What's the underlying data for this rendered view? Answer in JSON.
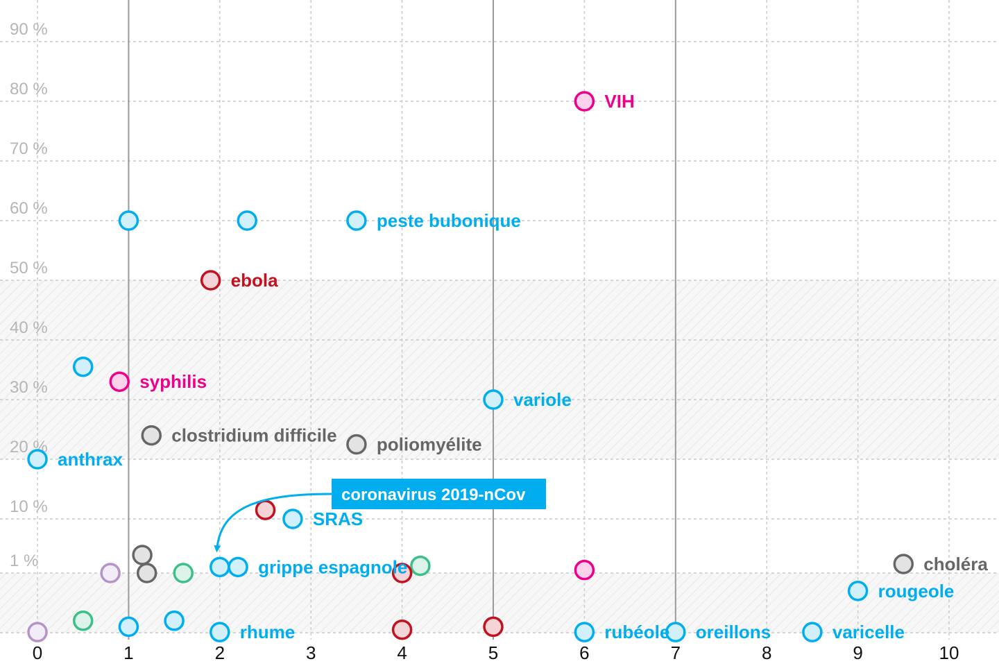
{
  "chart_data": {
    "type": "scatter",
    "xlabel": "",
    "ylabel": "",
    "xlim": [
      0,
      10
    ],
    "ylim": [
      "0",
      "90 %"
    ],
    "x_ticks": [
      "0",
      "1",
      "2",
      "3",
      "4",
      "5",
      "6",
      "7",
      "8",
      "9",
      "10"
    ],
    "y_ticks": [
      {
        "value": 90,
        "label": "90 %"
      },
      {
        "value": 80,
        "label": "80 %"
      },
      {
        "value": 70,
        "label": "70 %"
      },
      {
        "value": 60,
        "label": "60 %"
      },
      {
        "value": 50,
        "label": "50 %"
      },
      {
        "value": 40,
        "label": "40 %"
      },
      {
        "value": 30,
        "label": "30 %"
      },
      {
        "value": 20,
        "label": "20 %"
      },
      {
        "value": 10,
        "label": "10 %"
      },
      {
        "value": 1,
        "label": "1 %"
      }
    ],
    "y_scale_note": "piecewise: linear 10–90 %, compressed 0–10 %",
    "grid": true,
    "colors": {
      "blue": "#00aeef",
      "pink": "#ec008c",
      "red": "#c1121f",
      "gray": "#666666",
      "green": "#3dbf8a",
      "purple": "#b394c9"
    },
    "points": [
      {
        "x": 6.0,
        "y": 80,
        "color": "pink",
        "label": "VIH"
      },
      {
        "x": 1.0,
        "y": 60,
        "color": "blue",
        "label": ""
      },
      {
        "x": 2.3,
        "y": 60,
        "color": "blue",
        "label": ""
      },
      {
        "x": 3.5,
        "y": 60,
        "color": "blue",
        "label": "peste bubonique"
      },
      {
        "x": 1.9,
        "y": 50,
        "color": "red",
        "label": "ebola"
      },
      {
        "x": 0.5,
        "y": 35.5,
        "color": "blue",
        "label": ""
      },
      {
        "x": 0.9,
        "y": 33,
        "color": "pink",
        "label": "syphilis"
      },
      {
        "x": 5.0,
        "y": 30,
        "color": "blue",
        "label": "variole"
      },
      {
        "x": 1.25,
        "y": 24,
        "color": "gray",
        "label": "clostridium difficile"
      },
      {
        "x": 3.5,
        "y": 22.5,
        "color": "gray",
        "label": "poliomyélite"
      },
      {
        "x": 0.0,
        "y": 20,
        "color": "blue",
        "label": "anthrax"
      },
      {
        "x": 2.5,
        "y": 11.5,
        "color": "red",
        "label": ""
      },
      {
        "x": 2.8,
        "y": 10,
        "color": "blue",
        "label": "SRAS"
      },
      {
        "x": 1.15,
        "y": 4,
        "color": "gray",
        "label": ""
      },
      {
        "x": 2.2,
        "y": 2,
        "color": "blue",
        "label": "grippe espagnole"
      },
      {
        "x": 4.2,
        "y": 2.2,
        "color": "green",
        "label": ""
      },
      {
        "x": 9.5,
        "y": 2.5,
        "color": "gray",
        "label": "choléra"
      },
      {
        "x": 6.0,
        "y": 1.5,
        "color": "pink",
        "label": ""
      },
      {
        "x": 0.8,
        "y": 1,
        "color": "purple",
        "label": ""
      },
      {
        "x": 1.2,
        "y": 1,
        "color": "gray",
        "label": ""
      },
      {
        "x": 1.6,
        "y": 1,
        "color": "green",
        "label": ""
      },
      {
        "x": 4.0,
        "y": 1,
        "color": "red",
        "label": ""
      },
      {
        "x": 9.0,
        "y": 0.7,
        "color": "blue",
        "label": "rougeole"
      },
      {
        "x": 0.5,
        "y": 0.2,
        "color": "green",
        "label": ""
      },
      {
        "x": 1.0,
        "y": 0.1,
        "color": "blue",
        "label": ""
      },
      {
        "x": 1.5,
        "y": 0.2,
        "color": "blue",
        "label": ""
      },
      {
        "x": 2.0,
        "y": 0.01,
        "color": "blue",
        "label": "rhume"
      },
      {
        "x": 0.0,
        "y": 0.01,
        "color": "purple",
        "label": ""
      },
      {
        "x": 4.0,
        "y": 0.05,
        "color": "red",
        "label": ""
      },
      {
        "x": 5.0,
        "y": 0.1,
        "color": "red",
        "label": ""
      },
      {
        "x": 6.0,
        "y": 0.01,
        "color": "blue",
        "label": "rubéole"
      },
      {
        "x": 7.0,
        "y": 0.01,
        "color": "blue",
        "label": "oreillons"
      },
      {
        "x": 8.5,
        "y": 0.01,
        "color": "blue",
        "label": "varicelle"
      }
    ],
    "highlight": {
      "label": "coronavirus 2019-nCov",
      "x": 2.0,
      "y": 2,
      "color": "blue"
    }
  }
}
